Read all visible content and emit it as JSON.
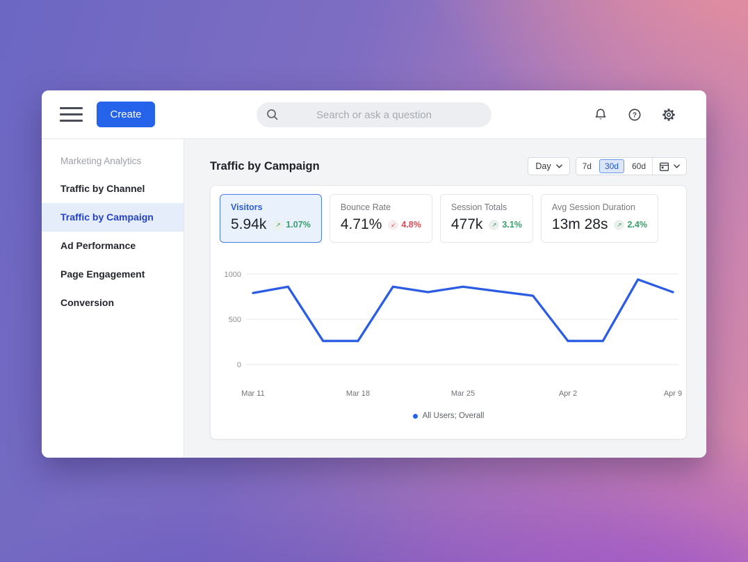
{
  "topbar": {
    "create_label": "Create",
    "search_placeholder": "Search or ask a question",
    "icons": [
      "notifications-bell",
      "help-circle",
      "settings-gear"
    ]
  },
  "sidebar": {
    "section_label": "Marketing Analytics",
    "items": [
      {
        "label": "Traffic by Channel",
        "active": false
      },
      {
        "label": "Traffic by Campaign",
        "active": true
      },
      {
        "label": "Ad Performance",
        "active": false
      },
      {
        "label": "Page Engagement",
        "active": false
      },
      {
        "label": "Conversion",
        "active": false
      }
    ]
  },
  "main": {
    "title": "Traffic by Campaign",
    "granularity_label": "Day",
    "range_options": [
      {
        "label": "7d",
        "active": false
      },
      {
        "label": "30d",
        "active": true
      },
      {
        "label": "60d",
        "active": false
      }
    ],
    "metrics": [
      {
        "label": "Visitors",
        "value": "5.94k",
        "change": "1.07%",
        "direction": "up",
        "selected": true
      },
      {
        "label": "Bounce Rate",
        "value": "4.71%",
        "change": "4.8%",
        "direction": "down",
        "selected": false
      },
      {
        "label": "Session Totals",
        "value": "477k",
        "change": "3.1%",
        "direction": "up",
        "selected": false
      },
      {
        "label": "Avg Session Duration",
        "value": "13m 28s",
        "change": "2.4%",
        "direction": "up",
        "selected": false
      }
    ]
  },
  "chart_data": {
    "type": "line",
    "title": "Traffic by Campaign",
    "series": [
      {
        "name": "All Users; Overall",
        "color": "#2b5ce2",
        "values": [
          790,
          860,
          260,
          260,
          860,
          800,
          860,
          810,
          760,
          260,
          260,
          940,
          800
        ]
      }
    ],
    "x_tick_labels": [
      "Mar 11",
      "Mar 18",
      "Mar 25",
      "Apr 2",
      "Apr 9"
    ],
    "x_tick_indices": [
      0,
      3,
      6,
      9,
      12
    ],
    "y_ticks": [
      0,
      500,
      1000
    ],
    "ylim": [
      0,
      1000
    ],
    "xlabel": "",
    "ylabel": "",
    "grid": true,
    "legend": "All Users; Overall",
    "legend_position": "bottom"
  },
  "colors": {
    "accent": "#2563eb",
    "line": "#2b5ce2",
    "positive": "#35a06a",
    "negative": "#dd4b59",
    "active_nav": "#2442c8",
    "grid": "#e8eaed"
  }
}
